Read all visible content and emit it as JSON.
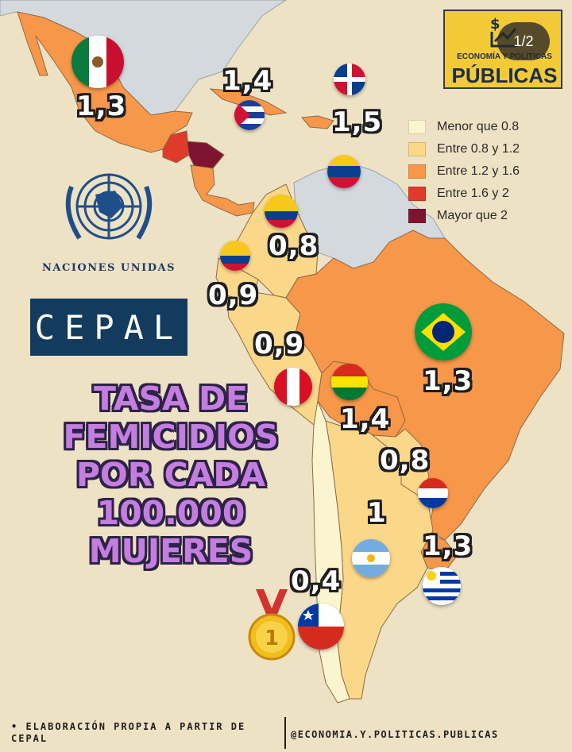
{
  "title_lines": [
    "TASA DE",
    "FEMICIDIOS",
    "POR CADA",
    "100.000",
    "MUJERES"
  ],
  "legend": [
    {
      "label": "Menor que 0.8",
      "color": "#fbf5cf"
    },
    {
      "label": "Entre 0.8 y 1.2",
      "color": "#fbd78a"
    },
    {
      "label": "Entre 1.2 y 1.6",
      "color": "#f7974a"
    },
    {
      "label": "Entre 1.6 y 2",
      "color": "#e03a2c"
    },
    {
      "label": "Mayor que 2",
      "color": "#7e1430"
    }
  ],
  "countries": [
    {
      "id": "mexico",
      "flag": "mexico-flag",
      "value": "1,3"
    },
    {
      "id": "cuba",
      "flag": "cuba-flag",
      "value": "1,4"
    },
    {
      "id": "dominican-republic",
      "flag": "dominican-republic-flag",
      "value": "1,5"
    },
    {
      "id": "venezuela",
      "flag": "venezuela-flag",
      "value": ""
    },
    {
      "id": "colombia",
      "flag": "colombia-flag",
      "value": "0,8"
    },
    {
      "id": "ecuador",
      "flag": "ecuador-flag",
      "value": "0,9"
    },
    {
      "id": "peru",
      "flag": "peru-flag",
      "value": "0,9"
    },
    {
      "id": "bolivia",
      "flag": "bolivia-flag",
      "value": "1,4"
    },
    {
      "id": "brazil",
      "flag": "brazil-flag",
      "value": "1,3"
    },
    {
      "id": "paraguay",
      "flag": "paraguay-flag",
      "value": "0,8"
    },
    {
      "id": "argentina",
      "flag": "argentina-flag",
      "value": "1"
    },
    {
      "id": "uruguay",
      "flag": "uruguay-flag",
      "value": "1,3"
    },
    {
      "id": "chile",
      "flag": "chile-flag",
      "value": "0,4"
    }
  ],
  "organizations": {
    "un_name": "NACIONES UNIDAS",
    "cepal": "CEPAL"
  },
  "brand": {
    "top": "ECONOMÍA Y POLÍTICAS",
    "main": "PÚBLICAS"
  },
  "pager": "1/2",
  "footer": {
    "source": "• ELABORACIÓN PROPIA A PARTIR DE CEPAL",
    "handle": "@ECONOMIA.Y.POLITICAS.PUBLICAS"
  },
  "icons": [
    "un-emblem-icon",
    "gold-medal-icon",
    "dollar-chart-icon"
  ],
  "colors": {
    "ocean": "#eee2c4",
    "land_other": "#d4d9dd",
    "title": "#c37ee0",
    "cepal": "#123b5e",
    "brand": "#f3c936"
  }
}
